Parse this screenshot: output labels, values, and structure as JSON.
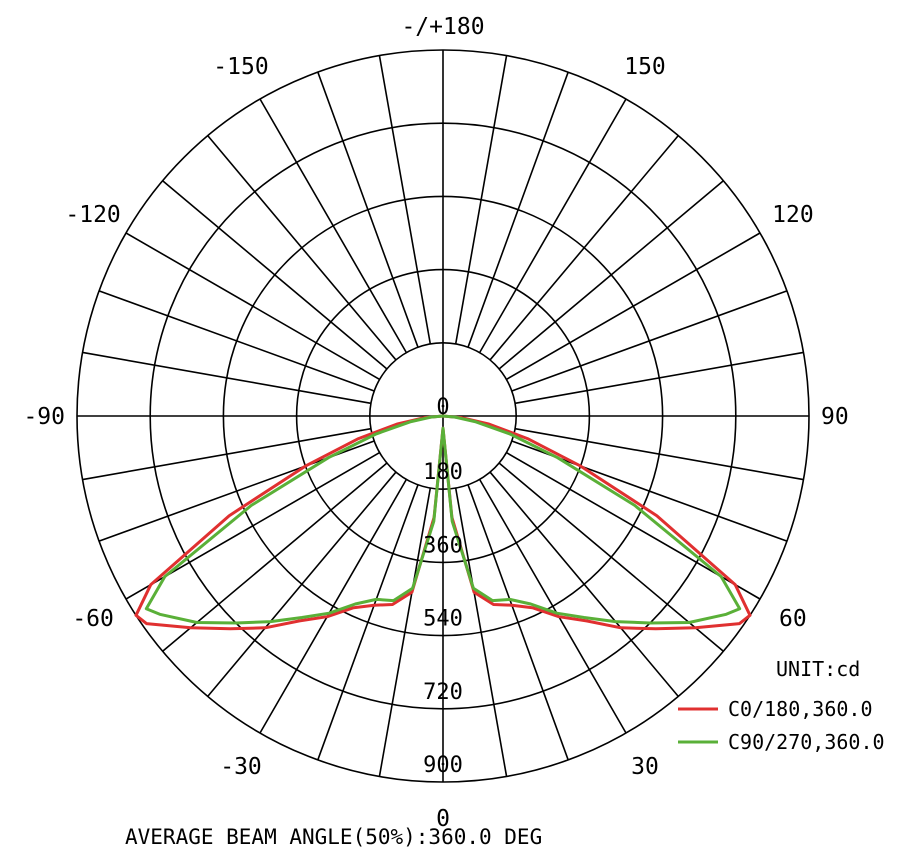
{
  "chart_data": {
    "type": "polar-line",
    "angle_labels": [
      {
        "angle": 180,
        "text": "-/+180"
      },
      {
        "angle": 150,
        "text": "150"
      },
      {
        "angle": -150,
        "text": "-150"
      },
      {
        "angle": 120,
        "text": "120"
      },
      {
        "angle": -120,
        "text": "-120"
      },
      {
        "angle": 90,
        "text": "90"
      },
      {
        "angle": -90,
        "text": "-90"
      },
      {
        "angle": 60,
        "text": "60"
      },
      {
        "angle": -60,
        "text": "-60"
      },
      {
        "angle": 30,
        "text": "30"
      },
      {
        "angle": -30,
        "text": "-30"
      },
      {
        "angle": 0,
        "text": "0"
      }
    ],
    "radial_ticks": [
      0,
      180,
      360,
      540,
      720,
      900
    ],
    "radial_max": 900,
    "unit_label": "UNIT:cd",
    "footer": "AVERAGE BEAM ANGLE(50%):360.0 DEG",
    "series": [
      {
        "name": "C0/180,360.0",
        "color": "#e03030",
        "points": [
          [
            -90,
            0
          ],
          [
            -85,
            45
          ],
          [
            -80,
            115
          ],
          [
            -75,
            215
          ],
          [
            -70,
            360
          ],
          [
            -65,
            580
          ],
          [
            -60,
            830
          ],
          [
            -57,
            900
          ],
          [
            -55,
            890
          ],
          [
            -50,
            810
          ],
          [
            -45,
            740
          ],
          [
            -40,
            680
          ],
          [
            -35,
            615
          ],
          [
            -30,
            570
          ],
          [
            -25,
            520
          ],
          [
            -20,
            495
          ],
          [
            -15,
            480
          ],
          [
            -10,
            440
          ],
          [
            -5,
            250
          ],
          [
            0,
            30
          ],
          [
            5,
            250
          ],
          [
            10,
            440
          ],
          [
            15,
            480
          ],
          [
            20,
            495
          ],
          [
            25,
            520
          ],
          [
            30,
            570
          ],
          [
            35,
            615
          ],
          [
            40,
            680
          ],
          [
            45,
            740
          ],
          [
            50,
            810
          ],
          [
            55,
            890
          ],
          [
            57,
            900
          ],
          [
            60,
            830
          ],
          [
            65,
            580
          ],
          [
            70,
            360
          ],
          [
            75,
            215
          ],
          [
            80,
            115
          ],
          [
            85,
            45
          ],
          [
            90,
            0
          ]
        ]
      },
      {
        "name": "C90/270,360.0",
        "color": "#5ab038",
        "points": [
          [
            -90,
            0
          ],
          [
            -85,
            30
          ],
          [
            -80,
            80
          ],
          [
            -75,
            170
          ],
          [
            -70,
            300
          ],
          [
            -65,
            520
          ],
          [
            -60,
            790
          ],
          [
            -57,
            870
          ],
          [
            -55,
            850
          ],
          [
            -50,
            790
          ],
          [
            -45,
            720
          ],
          [
            -40,
            660
          ],
          [
            -35,
            605
          ],
          [
            -30,
            560
          ],
          [
            -25,
            510
          ],
          [
            -20,
            480
          ],
          [
            -15,
            470
          ],
          [
            -10,
            430
          ],
          [
            -5,
            260
          ],
          [
            0,
            30
          ],
          [
            5,
            260
          ],
          [
            10,
            430
          ],
          [
            15,
            470
          ],
          [
            20,
            480
          ],
          [
            25,
            510
          ],
          [
            30,
            560
          ],
          [
            35,
            605
          ],
          [
            40,
            660
          ],
          [
            45,
            720
          ],
          [
            50,
            790
          ],
          [
            55,
            850
          ],
          [
            57,
            870
          ],
          [
            60,
            790
          ],
          [
            65,
            520
          ],
          [
            70,
            300
          ],
          [
            75,
            170
          ],
          [
            80,
            80
          ],
          [
            85,
            30
          ],
          [
            90,
            0
          ]
        ]
      }
    ]
  }
}
